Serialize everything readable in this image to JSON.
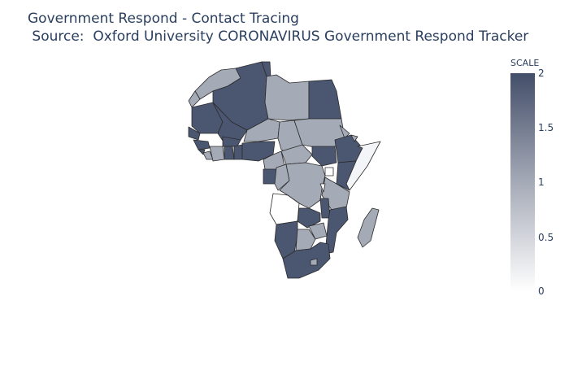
{
  "title": {
    "line1": "Government Respond - Contact Tracing",
    "line2": " Source:  Oxford University CORONAVIRUS Government Respond Tracker"
  },
  "colorbar": {
    "title": "SCALE",
    "ticks": [
      "2",
      "1.5",
      "1",
      "0.5",
      "0"
    ],
    "range": [
      0,
      2
    ],
    "colors": {
      "high": "#434e69",
      "mid": "#a5aab7",
      "low": "#ffffff"
    }
  },
  "legend_colors": {
    "score_2": "#4b5670",
    "score_1": "#a5aab7",
    "score_0": "#ffffff"
  }
}
